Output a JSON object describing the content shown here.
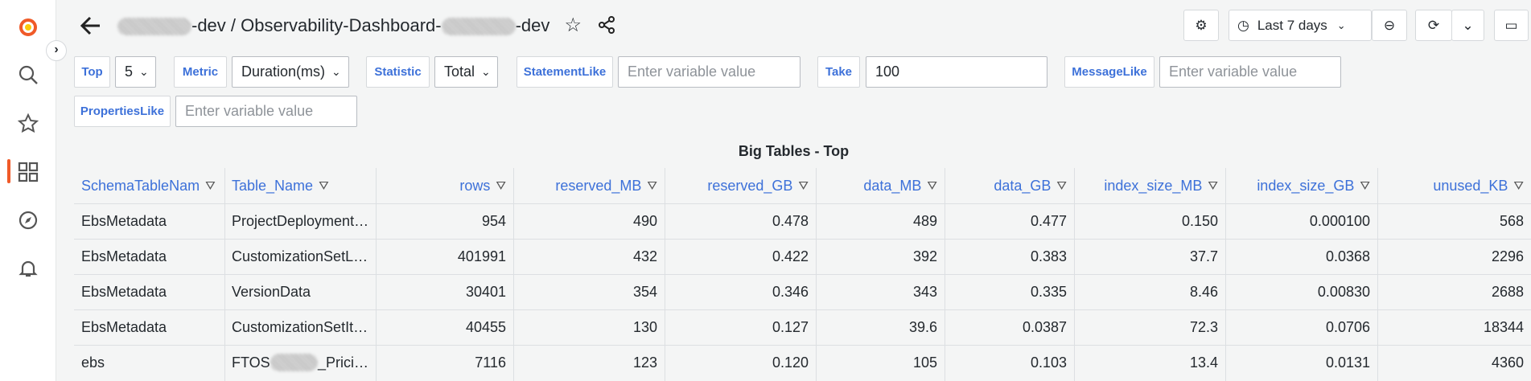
{
  "header": {
    "breadcrumb": [
      "-dev",
      "/ Observability-Dashboard-",
      "-dev"
    ],
    "time_range": "Last 7 days"
  },
  "variables": [
    {
      "label": "Top",
      "value": "5"
    },
    {
      "label": "Metric",
      "value": "Duration(ms)"
    },
    {
      "label": "Statistic",
      "value": "Total"
    },
    {
      "label": "StatementLike",
      "placeholder": "Enter variable value"
    },
    {
      "label": "Take",
      "value": "100"
    },
    {
      "label": "MessageLike",
      "placeholder": "Enter variable value"
    },
    {
      "label": "PropertiesLike",
      "placeholder": "Enter variable value"
    }
  ],
  "panel": {
    "title": "Big Tables - Top"
  },
  "table": {
    "columns": [
      "SchemaTableNam",
      "Table_Name",
      "rows",
      "reserved_MB",
      "reserved_GB",
      "data_MB",
      "data_GB",
      "index_size_MB",
      "index_size_GB",
      "unused_KB"
    ],
    "rows": [
      [
        "EbsMetadata",
        "ProjectDeployment…",
        "954",
        "490",
        "0.478",
        "489",
        "0.477",
        "0.150",
        "0.000100",
        "568"
      ],
      [
        "EbsMetadata",
        "CustomizationSetL…",
        "401991",
        "432",
        "0.422",
        "392",
        "0.383",
        "37.7",
        "0.0368",
        "2296"
      ],
      [
        "EbsMetadata",
        "VersionData",
        "30401",
        "354",
        "0.346",
        "343",
        "0.335",
        "8.46",
        "0.00830",
        "2688"
      ],
      [
        "EbsMetadata",
        "CustomizationSetIt…",
        "40455",
        "130",
        "0.127",
        "39.6",
        "0.0387",
        "72.3",
        "0.0706",
        "18344"
      ],
      [
        "ebs",
        [
          "FTOS",
          "_Prici…"
        ],
        "7116",
        "123",
        "0.120",
        "105",
        "0.103",
        "13.4",
        "0.0131",
        "4360"
      ]
    ]
  }
}
